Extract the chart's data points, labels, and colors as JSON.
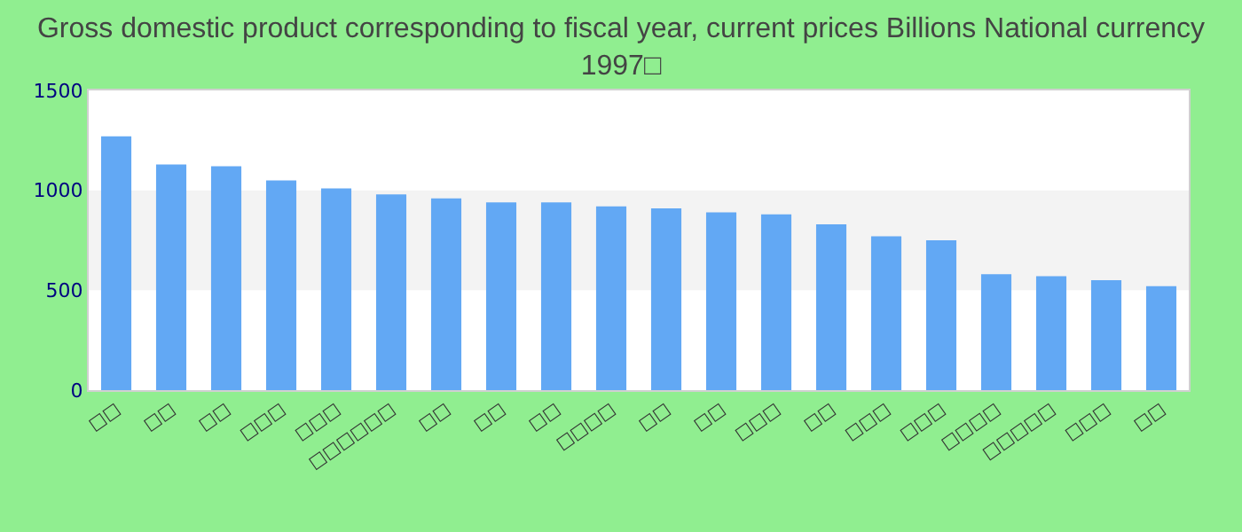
{
  "chart_data": {
    "type": "bar",
    "title": "Gross domestic product corresponding to fiscal year, current prices Billions National currency 1997□",
    "categories": [
      "□□",
      "□□",
      "□□",
      "□□□",
      "□□□",
      "□□□□□□",
      "□□",
      "□□",
      "□□",
      "□□□□",
      "□□",
      "□□",
      "□□□",
      "□□",
      "□□□",
      "□□□",
      "□□□□",
      "□□□□□",
      "□□□",
      "□□"
    ],
    "values": [
      1270,
      1130,
      1120,
      1050,
      1010,
      980,
      960,
      940,
      940,
      920,
      910,
      890,
      880,
      830,
      770,
      750,
      580,
      570,
      550,
      520
    ],
    "color": "#62a8f4",
    "ylim": [
      0,
      1500
    ],
    "yticks": [
      0,
      500,
      1000,
      1500
    ],
    "bands": [
      {
        "axis": "y",
        "from": 500,
        "to": 1000,
        "color": "#f3f3f3"
      }
    ],
    "grid": false
  }
}
